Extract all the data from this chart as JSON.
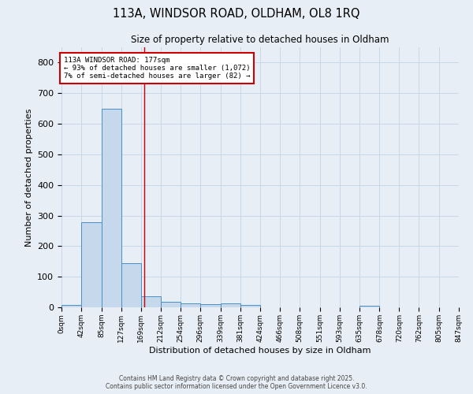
{
  "title_line1": "113A, WINDSOR ROAD, OLDHAM, OL8 1RQ",
  "title_line2": "Size of property relative to detached houses in Oldham",
  "xlabel": "Distribution of detached houses by size in Oldham",
  "ylabel": "Number of detached properties",
  "bin_edges": [
    0,
    42,
    85,
    127,
    169,
    212,
    254,
    296,
    339,
    381,
    424,
    466,
    508,
    551,
    593,
    635,
    678,
    720,
    762,
    805,
    847
  ],
  "bar_heights": [
    8,
    278,
    648,
    143,
    36,
    17,
    12,
    10,
    12,
    9,
    0,
    0,
    0,
    0,
    0,
    5,
    0,
    0,
    0,
    0
  ],
  "bar_color": "#c5d8ec",
  "bar_edge_color": "#4a90c4",
  "vline_x": 177,
  "vline_color": "#cc0000",
  "ylim": [
    0,
    850
  ],
  "yticks": [
    0,
    100,
    200,
    300,
    400,
    500,
    600,
    700,
    800
  ],
  "annotation_text": "113A WINDSOR ROAD: 177sqm\n← 93% of detached houses are smaller (1,072)\n7% of semi-detached houses are larger (82) →",
  "annotation_box_color": "#cc0000",
  "grid_color": "#c8d8e8",
  "fig_bg_color": "#e8eef5",
  "plot_bg_color": "#e8eef5",
  "footer_line1": "Contains HM Land Registry data © Crown copyright and database right 2025.",
  "footer_line2": "Contains public sector information licensed under the Open Government Licence v3.0.",
  "tick_labels": [
    "0sqm",
    "42sqm",
    "85sqm",
    "127sqm",
    "169sqm",
    "212sqm",
    "254sqm",
    "296sqm",
    "339sqm",
    "381sqm",
    "424sqm",
    "466sqm",
    "508sqm",
    "551sqm",
    "593sqm",
    "635sqm",
    "678sqm",
    "720sqm",
    "762sqm",
    "805sqm",
    "847sqm"
  ]
}
